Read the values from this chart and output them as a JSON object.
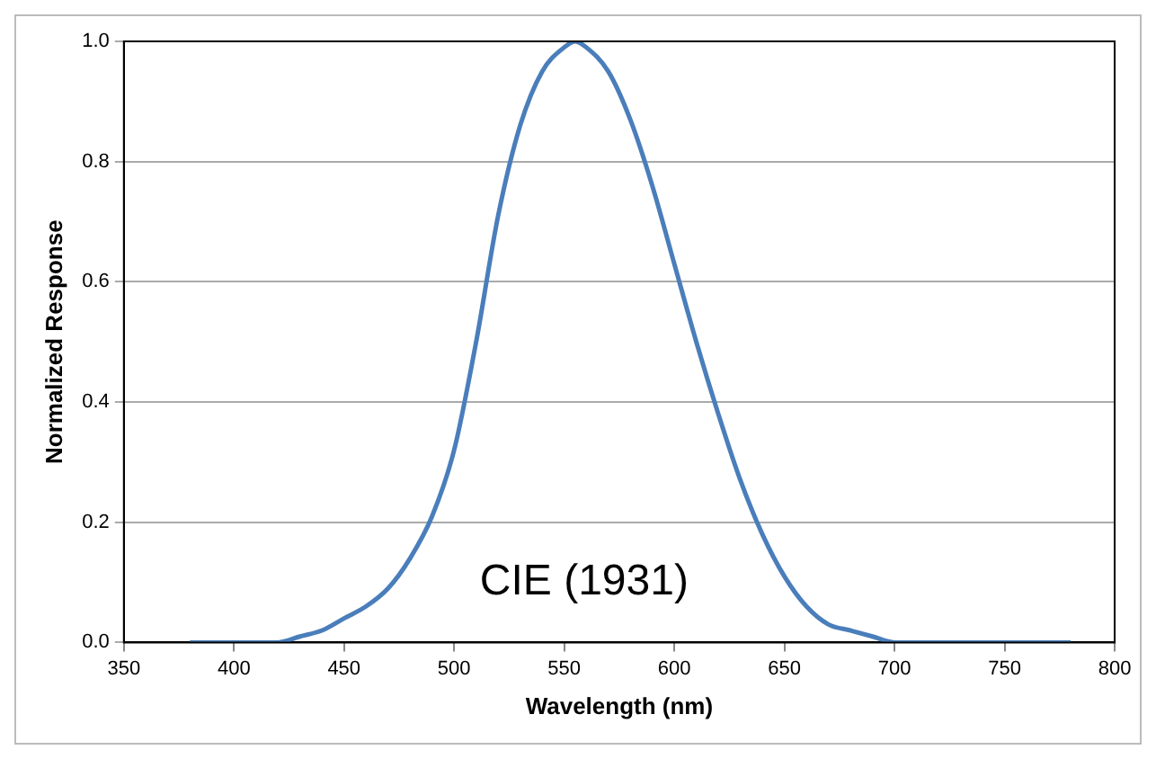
{
  "chart_data": {
    "type": "line",
    "xlabel": "Wavelength (nm)",
    "ylabel": "Normalized Response",
    "x": [
      380,
      390,
      400,
      410,
      420,
      430,
      440,
      450,
      460,
      470,
      480,
      490,
      500,
      510,
      520,
      530,
      540,
      550,
      555,
      560,
      570,
      580,
      590,
      600,
      610,
      620,
      630,
      640,
      650,
      660,
      670,
      680,
      690,
      700,
      710,
      720,
      730,
      740,
      750,
      760,
      770,
      780
    ],
    "series": [
      {
        "color": "#4a7ebb",
        "values": [
          0,
          0,
          0,
          0,
          0,
          0.01,
          0.02,
          0.04,
          0.06,
          0.09,
          0.14,
          0.21,
          0.32,
          0.5,
          0.71,
          0.86,
          0.95,
          0.99,
          1.0,
          0.99,
          0.95,
          0.87,
          0.76,
          0.63,
          0.5,
          0.38,
          0.27,
          0.18,
          0.11,
          0.06,
          0.03,
          0.02,
          0.01,
          0,
          0,
          0,
          0,
          0,
          0,
          0,
          0,
          0
        ]
      }
    ],
    "xlim": [
      350,
      800
    ],
    "xticks": [
      350,
      400,
      450,
      500,
      550,
      600,
      650,
      700,
      750,
      800
    ],
    "ylim": [
      0,
      1
    ],
    "yticks": [
      {
        "value": 0,
        "label": "0.0"
      },
      {
        "value": 0.2,
        "label": "0.2"
      },
      {
        "value": 0.4,
        "label": "0.4"
      },
      {
        "value": 0.6,
        "label": "0.6"
      },
      {
        "value": 0.8,
        "label": "0.8"
      },
      {
        "value": 1,
        "label": "1.0"
      }
    ],
    "grid": "y",
    "legend": false,
    "marker": "none",
    "line_style": "solid",
    "annotations": [
      "CIE (1931)"
    ]
  }
}
